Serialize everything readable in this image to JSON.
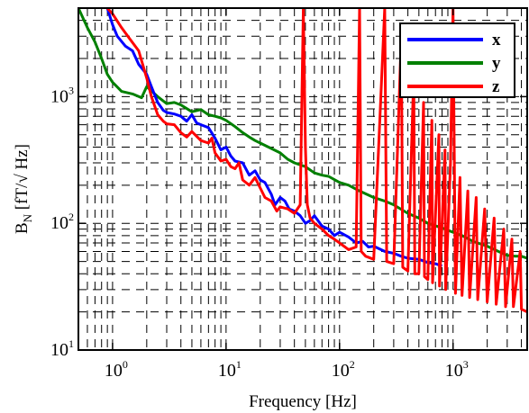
{
  "chart_data": {
    "type": "line",
    "title": "",
    "xlabel": "Frequency [Hz]",
    "ylabel": "B_N [fT/√ Hz]",
    "x_scale": "log",
    "y_scale": "log",
    "xlim": [
      0.5,
      4500
    ],
    "ylim": [
      10,
      5000
    ],
    "x_ticks": [
      {
        "value": 1,
        "base": "10",
        "exp": "0"
      },
      {
        "value": 10,
        "base": "10",
        "exp": "1"
      },
      {
        "value": 100,
        "base": "10",
        "exp": "2"
      },
      {
        "value": 1000,
        "base": "10",
        "exp": "3"
      }
    ],
    "y_ticks": [
      {
        "value": 10,
        "base": "10",
        "exp": "1"
      },
      {
        "value": 100,
        "base": "10",
        "exp": "2"
      },
      {
        "value": 1000,
        "base": "10",
        "exp": "3"
      }
    ],
    "grid": "dashed, major and minor",
    "legend_position": "top-right",
    "series": [
      {
        "name": "x",
        "color": "#0000ff",
        "points": [
          [
            0.9,
            5000
          ],
          [
            1.0,
            3700
          ],
          [
            1.1,
            3000
          ],
          [
            1.3,
            2500
          ],
          [
            1.5,
            2300
          ],
          [
            1.7,
            1800
          ],
          [
            2.0,
            1500
          ],
          [
            2.2,
            1200
          ],
          [
            2.5,
            900
          ],
          [
            2.8,
            780
          ],
          [
            3.0,
            750
          ],
          [
            3.5,
            730
          ],
          [
            4.0,
            700
          ],
          [
            4.5,
            640
          ],
          [
            5.0,
            720
          ],
          [
            5.5,
            620
          ],
          [
            6.0,
            600
          ],
          [
            7.0,
            570
          ],
          [
            8.0,
            470
          ],
          [
            9.0,
            380
          ],
          [
            10,
            400
          ],
          [
            11,
            340
          ],
          [
            12,
            310
          ],
          [
            14,
            300
          ],
          [
            16,
            240
          ],
          [
            18,
            260
          ],
          [
            20,
            220
          ],
          [
            22,
            210
          ],
          [
            25,
            170
          ],
          [
            27,
            140
          ],
          [
            30,
            160
          ],
          [
            33,
            150
          ],
          [
            36,
            130
          ],
          [
            40,
            125
          ],
          [
            45,
            115
          ],
          [
            50,
            100
          ],
          [
            55,
            105
          ],
          [
            60,
            115
          ],
          [
            70,
            95
          ],
          [
            80,
            90
          ],
          [
            90,
            80
          ],
          [
            100,
            85
          ],
          [
            120,
            78
          ],
          [
            140,
            70
          ],
          [
            160,
            72
          ],
          [
            180,
            65
          ],
          [
            200,
            66
          ],
          [
            250,
            60
          ],
          [
            300,
            58
          ],
          [
            350,
            55
          ],
          [
            400,
            53
          ],
          [
            500,
            52
          ],
          [
            600,
            49
          ],
          [
            700,
            48
          ],
          [
            800,
            46
          ]
        ]
      },
      {
        "name": "y",
        "color": "#008000",
        "points": [
          [
            0.5,
            5000
          ],
          [
            0.6,
            3500
          ],
          [
            0.7,
            2700
          ],
          [
            0.8,
            2000
          ],
          [
            0.9,
            1500
          ],
          [
            1.0,
            1300
          ],
          [
            1.2,
            1100
          ],
          [
            1.5,
            1050
          ],
          [
            1.8,
            980
          ],
          [
            2.0,
            1200
          ],
          [
            2.5,
            1000
          ],
          [
            3.0,
            880
          ],
          [
            3.5,
            900
          ],
          [
            4.0,
            860
          ],
          [
            5.0,
            760
          ],
          [
            6.0,
            790
          ],
          [
            7.0,
            720
          ],
          [
            8.0,
            700
          ],
          [
            9.0,
            680
          ],
          [
            10,
            650
          ],
          [
            12,
            580
          ],
          [
            14,
            520
          ],
          [
            16,
            480
          ],
          [
            18,
            450
          ],
          [
            20,
            430
          ],
          [
            25,
            390
          ],
          [
            30,
            360
          ],
          [
            35,
            320
          ],
          [
            40,
            300
          ],
          [
            50,
            280
          ],
          [
            60,
            250
          ],
          [
            70,
            240
          ],
          [
            80,
            235
          ],
          [
            100,
            210
          ],
          [
            120,
            200
          ],
          [
            150,
            180
          ],
          [
            200,
            160
          ],
          [
            250,
            150
          ],
          [
            300,
            140
          ],
          [
            400,
            120
          ],
          [
            500,
            110
          ],
          [
            600,
            100
          ],
          [
            800,
            92
          ],
          [
            1000,
            85
          ],
          [
            1200,
            80
          ],
          [
            1500,
            72
          ],
          [
            2000,
            66
          ],
          [
            2500,
            60
          ],
          [
            3000,
            56
          ],
          [
            3500,
            55
          ],
          [
            4000,
            55
          ],
          [
            4500,
            53
          ]
        ]
      },
      {
        "name": "z",
        "color": "#ff0000",
        "points": [
          [
            0.9,
            5000
          ],
          [
            1.0,
            4500
          ],
          [
            1.2,
            3500
          ],
          [
            1.4,
            2900
          ],
          [
            1.7,
            2300
          ],
          [
            2.0,
            1400
          ],
          [
            2.2,
            1000
          ],
          [
            2.5,
            720
          ],
          [
            2.8,
            640
          ],
          [
            3.0,
            610
          ],
          [
            3.5,
            600
          ],
          [
            4.0,
            520
          ],
          [
            4.5,
            480
          ],
          [
            5.0,
            530
          ],
          [
            6.0,
            450
          ],
          [
            7.0,
            430
          ],
          [
            7.5,
            470
          ],
          [
            8.0,
            360
          ],
          [
            9.0,
            310
          ],
          [
            10,
            320
          ],
          [
            11,
            280
          ],
          [
            12,
            270
          ],
          [
            13,
            300
          ],
          [
            14,
            220
          ],
          [
            16,
            200
          ],
          [
            18,
            230
          ],
          [
            20,
            190
          ],
          [
            22,
            160
          ],
          [
            25,
            150
          ],
          [
            28,
            125
          ],
          [
            30,
            135
          ],
          [
            35,
            130
          ],
          [
            40,
            120
          ],
          [
            45,
            140
          ],
          [
            48,
            5000
          ],
          [
            50,
            400
          ],
          [
            52,
            140
          ],
          [
            55,
            110
          ],
          [
            60,
            100
          ],
          [
            70,
            90
          ],
          [
            80,
            80
          ],
          [
            90,
            75
          ],
          [
            100,
            70
          ],
          [
            120,
            62
          ],
          [
            140,
            65
          ],
          [
            150,
            5000
          ],
          [
            155,
            60
          ],
          [
            170,
            55
          ],
          [
            200,
            52
          ],
          [
            250,
            5000
          ],
          [
            260,
            50
          ],
          [
            300,
            48
          ],
          [
            350,
            3000
          ],
          [
            360,
            45
          ],
          [
            400,
            42
          ],
          [
            450,
            1500
          ],
          [
            460,
            40
          ],
          [
            500,
            40
          ],
          [
            550,
            900
          ],
          [
            560,
            38
          ],
          [
            600,
            36
          ],
          [
            650,
            650
          ],
          [
            660,
            34
          ],
          [
            750,
            500
          ],
          [
            760,
            32
          ],
          [
            850,
            380
          ],
          [
            860,
            30
          ],
          [
            950,
            300
          ],
          [
            1000,
            5000
          ],
          [
            1050,
            28
          ],
          [
            1150,
            230
          ],
          [
            1200,
            27
          ],
          [
            1350,
            180
          ],
          [
            1400,
            26
          ],
          [
            1600,
            160
          ],
          [
            1650,
            25
          ],
          [
            1900,
            130
          ],
          [
            2000,
            24
          ],
          [
            2300,
            110
          ],
          [
            2400,
            23
          ],
          [
            2800,
            90
          ],
          [
            2900,
            22
          ],
          [
            3300,
            75
          ],
          [
            3400,
            22
          ],
          [
            3900,
            60
          ],
          [
            4000,
            21
          ],
          [
            4500,
            20
          ]
        ]
      }
    ]
  }
}
